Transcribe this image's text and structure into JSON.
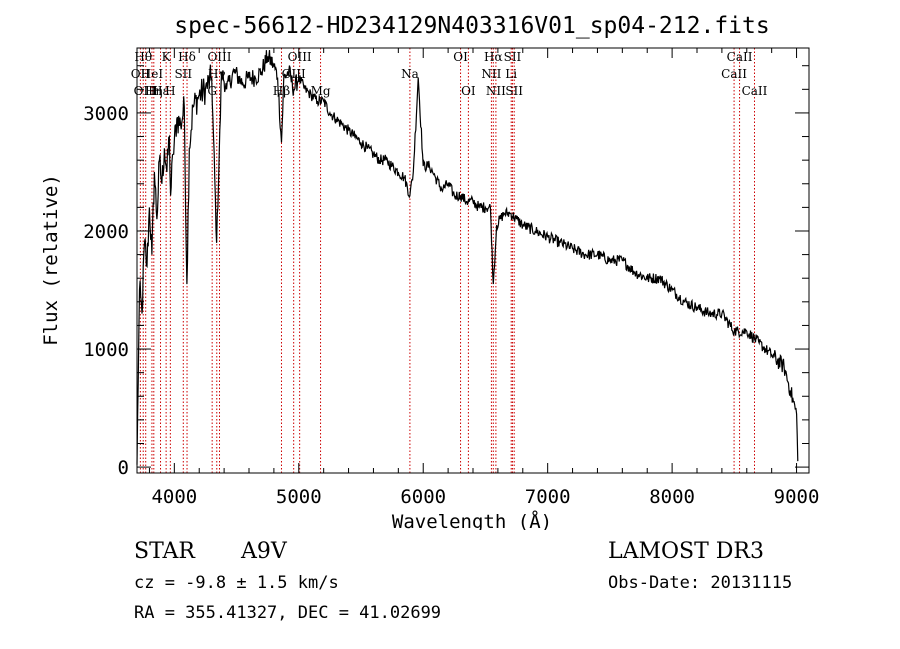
{
  "chart_data": {
    "type": "line",
    "title": "spec-56612-HD234129N403316V01_sp04-212.fits",
    "xlabel": "Wavelength (Å)",
    "ylabel": "Flux (relative)",
    "xlim": [
      3700,
      9100
    ],
    "ylim": [
      -50,
      3550
    ],
    "xticks": [
      4000,
      5000,
      6000,
      7000,
      8000,
      9000
    ],
    "yticks": [
      0,
      1000,
      2000,
      3000
    ],
    "series": [
      {
        "name": "flux",
        "x": [
          3700,
          3720,
          3740,
          3760,
          3780,
          3800,
          3820,
          3840,
          3860,
          3880,
          3900,
          3920,
          3940,
          3960,
          3970,
          3990,
          4020,
          4050,
          4080,
          4101,
          4120,
          4150,
          4200,
          4250,
          4300,
          4340,
          4380,
          4420,
          4480,
          4550,
          4600,
          4650,
          4700,
          4750,
          4800,
          4830,
          4861,
          4880,
          4920,
          4960,
          5000,
          5050,
          5100,
          5150,
          5200,
          5250,
          5300,
          5350,
          5400,
          5450,
          5500,
          5550,
          5600,
          5650,
          5700,
          5750,
          5800,
          5850,
          5893,
          5920,
          5960,
          6000,
          6050,
          6100,
          6150,
          6200,
          6250,
          6300,
          6350,
          6400,
          6450,
          6500,
          6540,
          6563,
          6590,
          6650,
          6700,
          6750,
          6800,
          6900,
          7000,
          7100,
          7200,
          7300,
          7400,
          7500,
          7600,
          7700,
          7800,
          7900,
          8000,
          8100,
          8200,
          8300,
          8400,
          8500,
          8600,
          8700,
          8800,
          8900,
          8950,
          9000,
          9010
        ],
        "y": [
          20,
          1500,
          1300,
          1900,
          1700,
          2200,
          1800,
          2500,
          2100,
          2600,
          2400,
          2700,
          2500,
          2800,
          2300,
          2650,
          2950,
          2900,
          3050,
          1550,
          2700,
          3050,
          3150,
          3200,
          3300,
          1900,
          3350,
          3200,
          3350,
          3250,
          3300,
          3300,
          3350,
          3480,
          3400,
          3300,
          2750,
          3300,
          3350,
          3200,
          3300,
          3200,
          3150,
          3100,
          3100,
          3000,
          2950,
          2900,
          2850,
          2800,
          2750,
          2700,
          2650,
          2600,
          2600,
          2550,
          2500,
          2450,
          2300,
          2500,
          3300,
          2550,
          2550,
          2450,
          2350,
          2400,
          2300,
          2300,
          2250,
          2250,
          2200,
          2200,
          2200,
          1550,
          2050,
          2150,
          2150,
          2100,
          2050,
          2000,
          1950,
          1900,
          1850,
          1800,
          1800,
          1750,
          1750,
          1650,
          1600,
          1600,
          1500,
          1400,
          1350,
          1300,
          1300,
          1150,
          1150,
          1050,
          950,
          850,
          650,
          450,
          50
        ]
      }
    ],
    "line_markers": [
      {
        "x": 3727,
        "label": "OII",
        "row": 1
      },
      {
        "x": 3750,
        "label": "Hθ",
        "row": 0
      },
      {
        "x": 3770,
        "label": "OIII",
        "row": 2
      },
      {
        "x": 3820,
        "label": "HeI",
        "row": 1
      },
      {
        "x": 3835,
        "label": "Hη",
        "row": 2
      },
      {
        "x": 3889,
        "label": "Hε",
        "row": 2
      },
      {
        "x": 3934,
        "label": "K",
        "row": 0
      },
      {
        "x": 3968,
        "label": "H",
        "row": 2
      },
      {
        "x": 4072,
        "label": "SII",
        "row": 1
      },
      {
        "x": 4102,
        "label": "Hδ",
        "row": 0
      },
      {
        "x": 4304,
        "label": "G",
        "row": 2
      },
      {
        "x": 4341,
        "label": "Hγ",
        "row": 1
      },
      {
        "x": 4363,
        "label": "OIII",
        "row": 0
      },
      {
        "x": 4861,
        "label": "Hβ",
        "row": 2
      },
      {
        "x": 4959,
        "label": "OIII",
        "row": 1
      },
      {
        "x": 5007,
        "label": "OIII",
        "row": 0
      },
      {
        "x": 5175,
        "label": "Mg",
        "row": 2
      },
      {
        "x": 5893,
        "label": "Na",
        "row": 1
      },
      {
        "x": 6300,
        "label": "OI",
        "row": 0
      },
      {
        "x": 6363,
        "label": "OI",
        "row": 2
      },
      {
        "x": 6548,
        "label": "NII",
        "row": 1
      },
      {
        "x": 6563,
        "label": "Hα",
        "row": 0
      },
      {
        "x": 6584,
        "label": "NII",
        "row": 2
      },
      {
        "x": 6707,
        "label": "Li",
        "row": 1
      },
      {
        "x": 6717,
        "label": "SII",
        "row": 0
      },
      {
        "x": 6731,
        "label": "SII",
        "row": 2
      },
      {
        "x": 8498,
        "label": "CaII",
        "row": 1
      },
      {
        "x": 8542,
        "label": "CaII",
        "row": 0
      },
      {
        "x": 8662,
        "label": "CaII",
        "row": 2
      }
    ],
    "marker_color": "#cc0000",
    "line_color": "#000000"
  },
  "info": {
    "object_type": "STAR",
    "subclass": "A9V",
    "survey": "LAMOST DR3",
    "redshift": "cz = -9.8 ± 1.5 km/s",
    "obs_date": "Obs-Date: 20131115",
    "coords": "RA = 355.41327, DEC =  41.02699"
  }
}
